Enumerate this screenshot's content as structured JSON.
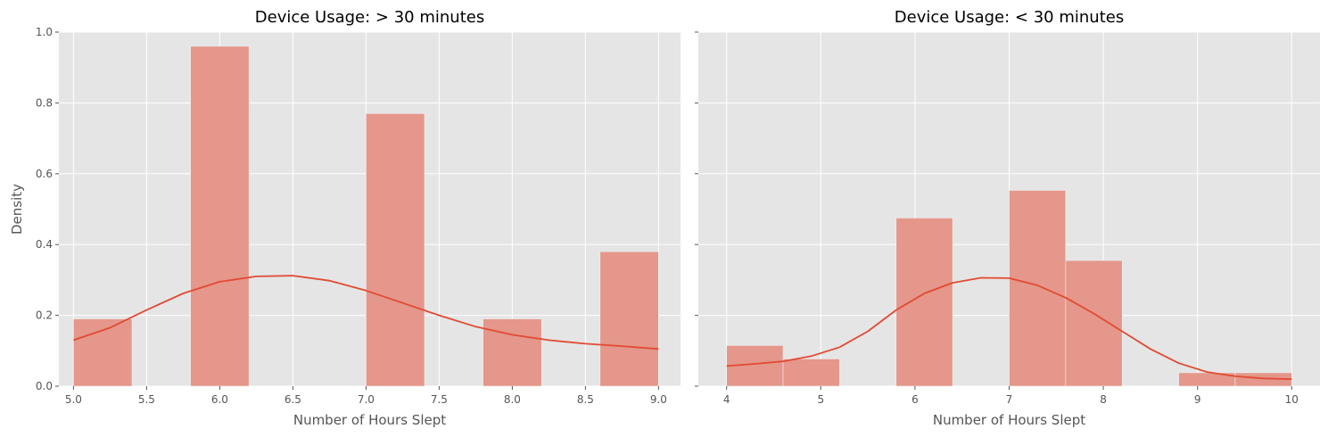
{
  "chart_data": [
    {
      "type": "bar",
      "title": "Device Usage: > 30 minutes",
      "xlabel": "Number of Hours Slept",
      "ylabel": "Density",
      "xlim": [
        4.9,
        9.15
      ],
      "ylim": [
        0,
        1.0
      ],
      "xticks": [
        "5.0",
        "5.5",
        "6.0",
        "6.5",
        "7.0",
        "7.5",
        "8.0",
        "8.5",
        "9.0"
      ],
      "yticks": [
        "0.0",
        "0.2",
        "0.4",
        "0.6",
        "0.8",
        "1.0"
      ],
      "grid": true,
      "bins": [
        {
          "x0": 5.0,
          "x1": 5.4,
          "value": 0.19
        },
        {
          "x0": 5.8,
          "x1": 6.2,
          "value": 0.96
        },
        {
          "x0": 7.0,
          "x1": 7.4,
          "value": 0.77
        },
        {
          "x0": 7.8,
          "x1": 8.2,
          "value": 0.19
        },
        {
          "x0": 8.6,
          "x1": 9.0,
          "value": 0.38
        }
      ],
      "kde": {
        "x": [
          5.0,
          5.25,
          5.5,
          5.75,
          6.0,
          6.25,
          6.5,
          6.75,
          7.0,
          7.25,
          7.5,
          7.75,
          8.0,
          8.25,
          8.5,
          8.75,
          9.0
        ],
        "y": [
          0.13,
          0.165,
          0.215,
          0.262,
          0.295,
          0.31,
          0.312,
          0.298,
          0.27,
          0.235,
          0.2,
          0.168,
          0.145,
          0.13,
          0.12,
          0.113,
          0.105
        ]
      },
      "colors": {
        "bar": "#e4978a",
        "line": "#e24a33"
      }
    },
    {
      "type": "bar",
      "title": "Device Usage: < 30 minutes",
      "xlabel": "Number of Hours Slept",
      "ylabel": "",
      "xlim": [
        3.7,
        10.3
      ],
      "ylim": [
        0,
        1.0
      ],
      "xticks": [
        "4",
        "5",
        "6",
        "7",
        "8",
        "9",
        "10"
      ],
      "yticks": [],
      "grid": true,
      "bins": [
        {
          "x0": 4.0,
          "x1": 4.6,
          "value": 0.115
        },
        {
          "x0": 4.6,
          "x1": 5.2,
          "value": 0.077
        },
        {
          "x0": 5.8,
          "x1": 6.4,
          "value": 0.475
        },
        {
          "x0": 7.0,
          "x1": 7.6,
          "value": 0.553
        },
        {
          "x0": 7.6,
          "x1": 8.2,
          "value": 0.355
        },
        {
          "x0": 8.8,
          "x1": 9.4,
          "value": 0.038
        },
        {
          "x0": 9.4,
          "x1": 10.0,
          "value": 0.038
        }
      ],
      "kde": {
        "x": [
          4.0,
          4.3,
          4.6,
          4.9,
          5.2,
          5.5,
          5.8,
          6.1,
          6.4,
          6.7,
          7.0,
          7.3,
          7.6,
          7.9,
          8.2,
          8.5,
          8.8,
          9.1,
          9.4,
          9.7,
          10.0
        ],
        "y": [
          0.057,
          0.063,
          0.07,
          0.085,
          0.11,
          0.155,
          0.215,
          0.262,
          0.292,
          0.306,
          0.305,
          0.285,
          0.25,
          0.205,
          0.155,
          0.105,
          0.065,
          0.04,
          0.028,
          0.022,
          0.02
        ]
      },
      "colors": {
        "bar": "#e4978a",
        "line": "#e24a33"
      }
    }
  ]
}
